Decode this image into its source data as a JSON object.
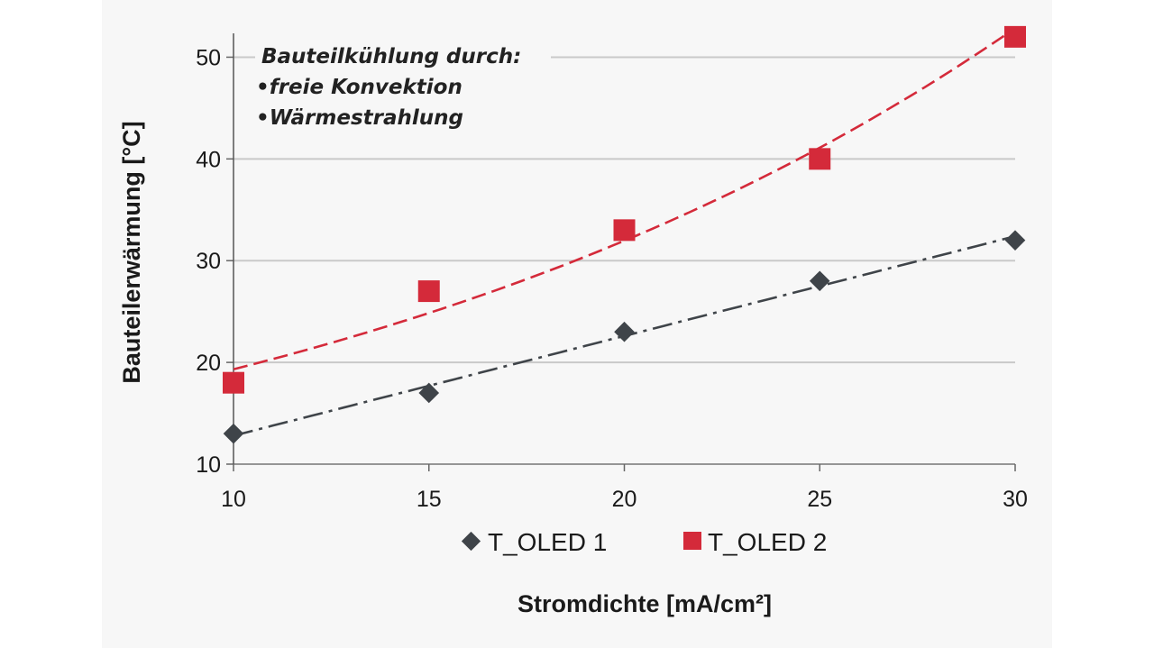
{
  "chart_data": {
    "type": "scatter",
    "xlabel": "Stromdichte [mA/cm²]",
    "ylabel": "Bauteilerwärmung [°C]",
    "xlim": [
      10,
      30
    ],
    "ylim": [
      10,
      55
    ],
    "xticks": [
      "10",
      "15",
      "20",
      "25",
      "30"
    ],
    "yticks": [
      "10",
      "20",
      "30",
      "40",
      "50"
    ],
    "grid": "horizontal",
    "legend_position": "bottom",
    "annotation": {
      "title": "Bauteilkühlung durch:",
      "items": [
        "•freie Konvektion",
        "•Wärmestrahlung"
      ]
    },
    "series": [
      {
        "name": "T_OLED 1",
        "marker": "diamond",
        "color": "#3f4449",
        "trendline": "linear",
        "trend_style": "dash-dot",
        "x": [
          10,
          15,
          20,
          25,
          30
        ],
        "y": [
          13,
          17,
          23,
          28,
          32
        ]
      },
      {
        "name": "T_OLED 2",
        "marker": "square",
        "color": "#d42a3a",
        "trendline": "exponential",
        "trend_style": "dashed",
        "x": [
          10,
          15,
          20,
          25,
          30
        ],
        "y": [
          18,
          27,
          33,
          40,
          52
        ]
      }
    ]
  }
}
